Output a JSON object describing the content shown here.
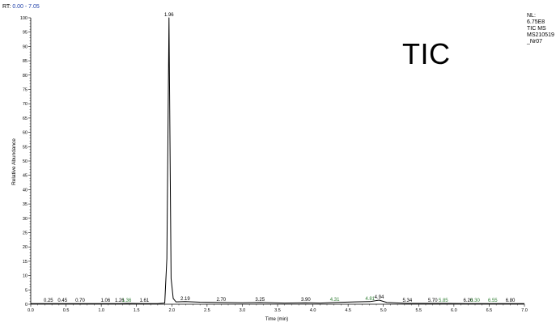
{
  "header": {
    "rt_prefix": "RT:",
    "rt_range": "0.00 - 7.05"
  },
  "info": {
    "nl_label": "NL:",
    "nl_value": "6.75E8",
    "filter": "TIC  MS",
    "file_line1": "MS210519",
    "file_line2": "_Nr07"
  },
  "trace_label": "TIC",
  "colors": {
    "trace": "#000000",
    "peak_label": "#000000",
    "minor_label_green": "#2e7d32",
    "rt_value": "#1f3fa8"
  },
  "chart_data": {
    "type": "line",
    "xlabel": "Time (min)",
    "ylabel": "Relative Abundance",
    "xlim": [
      0.0,
      7.0
    ],
    "ylim": [
      0,
      100
    ],
    "x_ticks": [
      "0.0",
      "0.5",
      "1.0",
      "1.5",
      "2.0",
      "2.5",
      "3.0",
      "3.5",
      "4.0",
      "4.5",
      "5.0",
      "5.5",
      "6.0",
      "6.5",
      "7.0"
    ],
    "y_ticks": [
      "0",
      "5",
      "10",
      "15",
      "20",
      "25",
      "30",
      "35",
      "40",
      "45",
      "50",
      "55",
      "60",
      "65",
      "70",
      "75",
      "80",
      "85",
      "90",
      "95",
      "100"
    ],
    "series": [
      {
        "x": [
          0.0,
          0.25,
          0.45,
          0.7,
          1.06,
          1.26,
          1.36,
          1.61,
          1.8,
          1.9,
          1.93,
          1.96,
          1.99,
          2.02,
          2.06,
          2.19,
          2.4,
          2.7,
          3.0,
          3.25,
          3.6,
          3.9,
          4.1,
          4.31,
          4.6,
          4.81,
          4.94,
          5.05,
          5.34,
          5.7,
          5.85,
          6.2,
          6.3,
          6.55,
          6.8,
          7.0
        ],
        "y": [
          0.2,
          0.2,
          0.2,
          0.2,
          0.2,
          0.2,
          0.3,
          0.2,
          0.2,
          0.4,
          16,
          100,
          9,
          2,
          0.8,
          0.9,
          0.7,
          0.6,
          0.5,
          0.6,
          0.4,
          0.5,
          0.4,
          0.6,
          0.8,
          0.9,
          1.4,
          0.6,
          0.3,
          0.3,
          0.3,
          0.2,
          0.2,
          0.2,
          0.2,
          0.2
        ]
      }
    ],
    "peak_labels": [
      {
        "x": 1.96,
        "y": 100,
        "text": "1.96",
        "color": "black"
      },
      {
        "x": 0.25,
        "y": 0.2,
        "text": "0.25",
        "color": "black"
      },
      {
        "x": 0.45,
        "y": 0.2,
        "text": "0.45",
        "color": "black"
      },
      {
        "x": 0.7,
        "y": 0.2,
        "text": "0.70",
        "color": "black"
      },
      {
        "x": 1.06,
        "y": 0.2,
        "text": "1.06",
        "color": "black"
      },
      {
        "x": 1.26,
        "y": 0.2,
        "text": "1.26",
        "color": "black"
      },
      {
        "x": 1.36,
        "y": 0.3,
        "text": "1.36",
        "color": "green"
      },
      {
        "x": 1.61,
        "y": 0.2,
        "text": "1.61",
        "color": "black"
      },
      {
        "x": 2.19,
        "y": 0.9,
        "text": "2.19",
        "color": "black"
      },
      {
        "x": 2.7,
        "y": 0.6,
        "text": "2.70",
        "color": "black"
      },
      {
        "x": 3.25,
        "y": 0.6,
        "text": "3.25",
        "color": "black"
      },
      {
        "x": 3.9,
        "y": 0.5,
        "text": "3.90",
        "color": "black"
      },
      {
        "x": 4.31,
        "y": 0.6,
        "text": "4.31",
        "color": "green"
      },
      {
        "x": 4.81,
        "y": 0.9,
        "text": "4.81",
        "color": "green"
      },
      {
        "x": 4.94,
        "y": 1.4,
        "text": "4.94",
        "color": "black"
      },
      {
        "x": 5.34,
        "y": 0.3,
        "text": "5.34",
        "color": "black"
      },
      {
        "x": 5.7,
        "y": 0.3,
        "text": "5.70",
        "color": "black"
      },
      {
        "x": 5.85,
        "y": 0.3,
        "text": "5.85",
        "color": "green"
      },
      {
        "x": 6.2,
        "y": 0.2,
        "text": "6.20",
        "color": "black"
      },
      {
        "x": 6.3,
        "y": 0.2,
        "text": "6.30",
        "color": "green"
      },
      {
        "x": 6.55,
        "y": 0.2,
        "text": "6.55",
        "color": "green"
      },
      {
        "x": 6.8,
        "y": 0.2,
        "text": "6.80",
        "color": "black"
      }
    ]
  }
}
